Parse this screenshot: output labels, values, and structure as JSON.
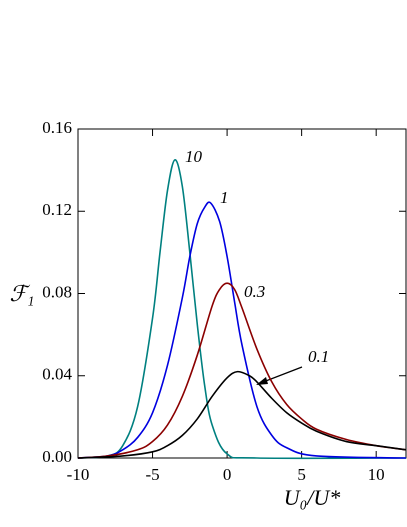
{
  "chart_data": {
    "type": "line",
    "x_label": "U₀/U*",
    "y_label": "ℱ₁",
    "xlim": [
      -10,
      12
    ],
    "xticks": [
      -10,
      -5,
      0,
      5,
      10
    ],
    "ylim": [
      0,
      0.16
    ],
    "yticks": [
      {
        "value": 0,
        "label": "0.00"
      },
      {
        "value": 0.04,
        "label": "0.04"
      },
      {
        "value": 0.08,
        "label": "0.08"
      },
      {
        "value": 0.12,
        "label": "0.12"
      },
      {
        "value": 0.16,
        "label": "0.16"
      }
    ],
    "series": [
      {
        "name": "10",
        "color": "#008080",
        "x": [
          -10,
          -8,
          -7,
          -6,
          -5,
          -4.5,
          -4,
          -3.5,
          -3,
          -2.5,
          -2,
          -1.5,
          -1,
          0,
          2,
          12
        ],
        "values": [
          0,
          0.001,
          0.006,
          0.025,
          0.068,
          0.1,
          0.13,
          0.145,
          0.132,
          0.1,
          0.065,
          0.035,
          0.016,
          0.002,
          0,
          0
        ]
      },
      {
        "name": "1",
        "color": "#0000e0",
        "x": [
          -10,
          -8,
          -7,
          -6,
          -5,
          -4,
          -3,
          -2.5,
          -2,
          -1.5,
          -1.1,
          -0.5,
          0,
          0.5,
          1,
          2,
          3,
          4,
          6,
          12
        ],
        "values": [
          0,
          0.001,
          0.004,
          0.01,
          0.022,
          0.045,
          0.078,
          0.098,
          0.114,
          0.122,
          0.124,
          0.115,
          0.098,
          0.076,
          0.055,
          0.025,
          0.011,
          0.005,
          0.001,
          0
        ]
      },
      {
        "name": "0.3",
        "color": "#8b0000",
        "x": [
          -10,
          -8,
          -6,
          -5,
          -4,
          -3,
          -2,
          -1,
          -0.5,
          0,
          0.5,
          1,
          2,
          3,
          4,
          5,
          6,
          8,
          10,
          12
        ],
        "values": [
          0,
          0.001,
          0.004,
          0.008,
          0.016,
          0.03,
          0.05,
          0.074,
          0.082,
          0.085,
          0.082,
          0.073,
          0.053,
          0.037,
          0.026,
          0.019,
          0.014,
          0.009,
          0.006,
          0.004
        ]
      },
      {
        "name": "0.1",
        "color": "#000000",
        "x": [
          -10,
          -7,
          -5,
          -4,
          -3,
          -2,
          -1,
          0,
          0.7,
          1.5,
          2,
          3,
          4,
          5,
          6,
          8,
          10,
          12
        ],
        "values": [
          0,
          0.001,
          0.003,
          0.006,
          0.011,
          0.019,
          0.03,
          0.039,
          0.042,
          0.04,
          0.037,
          0.029,
          0.022,
          0.017,
          0.013,
          0.008,
          0.006,
          0.004
        ]
      }
    ]
  }
}
